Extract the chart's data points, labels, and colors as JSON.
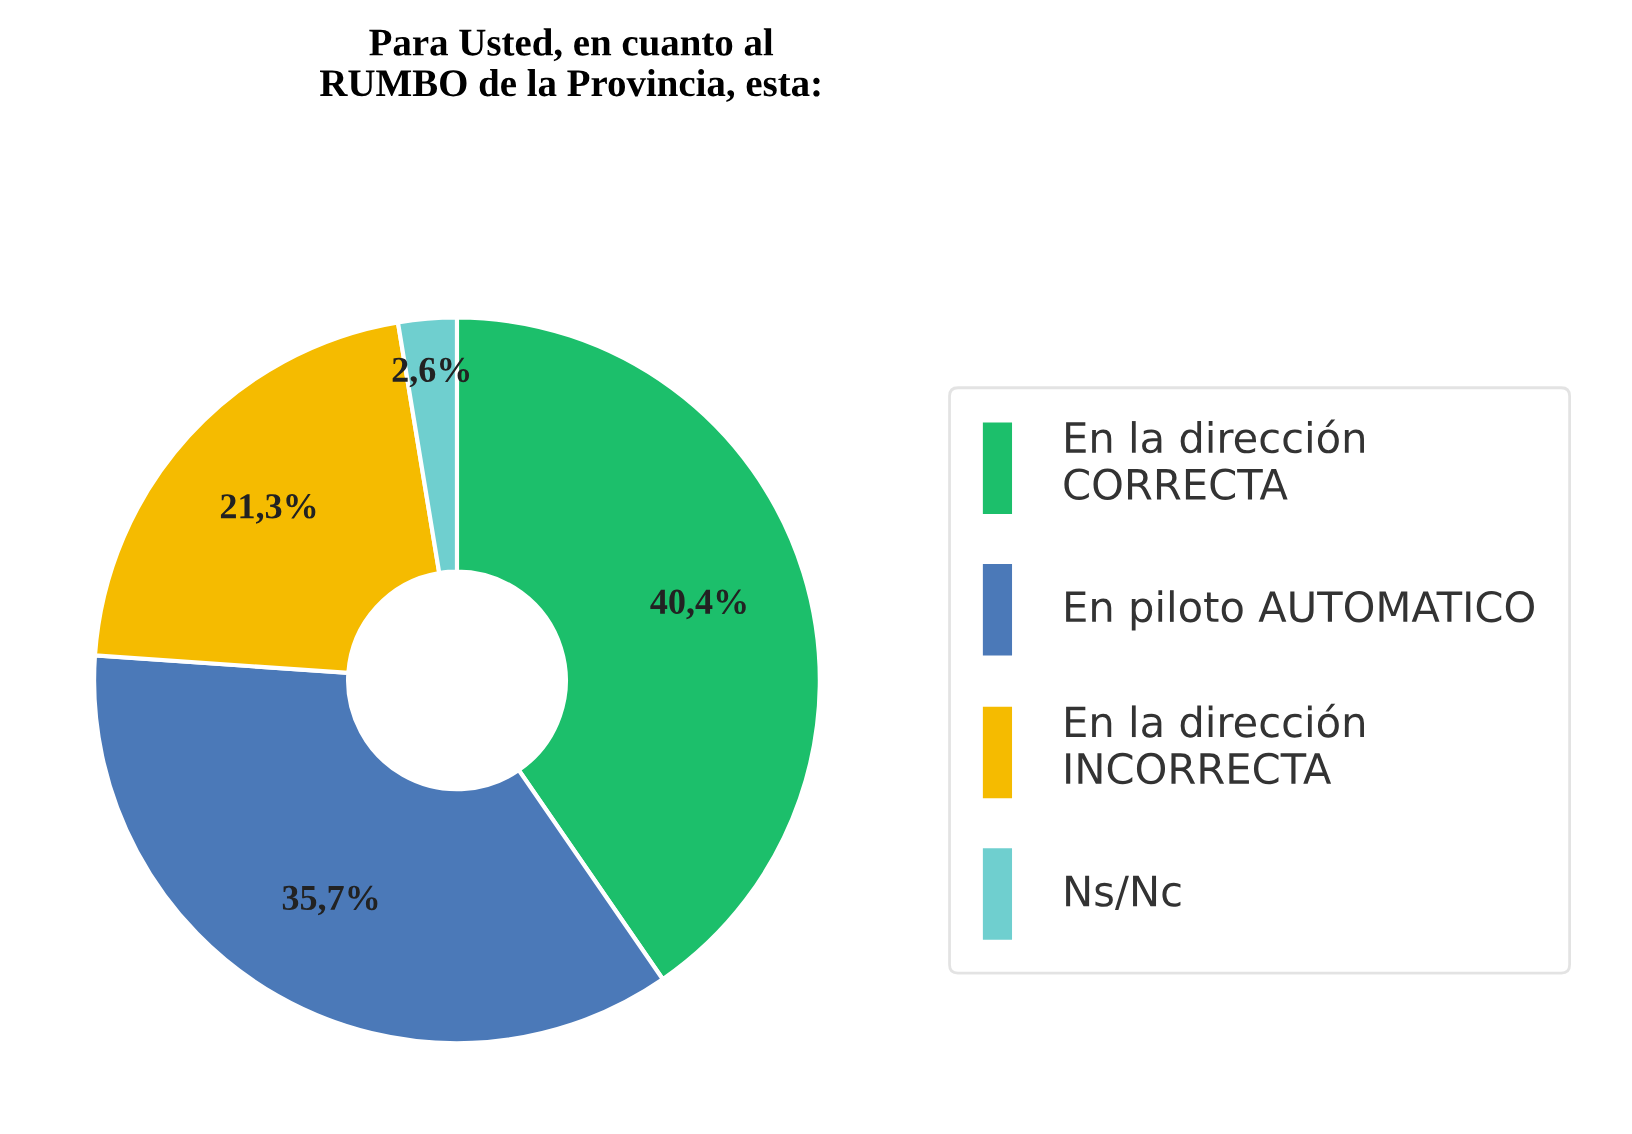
{
  "chart_data": {
    "type": "donut",
    "title": "Para Usted, en cuanto al\nRUMBO de la Provincia, esta:",
    "categories": [
      "En la dirección\nCORRECTA",
      "En piloto AUTOMATICO",
      "En la dirección\nINCORRECTA",
      "Ns/Nc"
    ],
    "values": [
      40.4,
      35.7,
      21.3,
      2.6
    ],
    "value_labels": [
      "40,4%",
      "35,7%",
      "21,3%",
      "2,6%"
    ],
    "colors": [
      "#1cbf6b",
      "#4b79b8",
      "#f5bb00",
      "#6fcfcf"
    ],
    "legend": "right"
  }
}
